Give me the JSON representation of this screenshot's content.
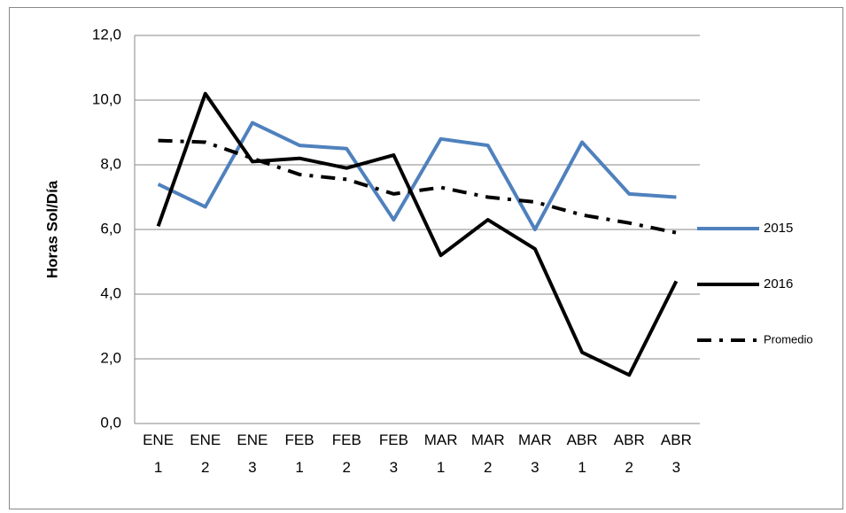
{
  "chart_data": {
    "type": "line",
    "y_label": "Horas Sol/Día",
    "categories": [
      [
        "ENE",
        "1"
      ],
      [
        "ENE",
        "2"
      ],
      [
        "ENE",
        "3"
      ],
      [
        "FEB",
        "1"
      ],
      [
        "FEB",
        "2"
      ],
      [
        "FEB",
        "3"
      ],
      [
        "MAR",
        "1"
      ],
      [
        "MAR",
        "2"
      ],
      [
        "MAR",
        "3"
      ],
      [
        "ABR",
        "1"
      ],
      [
        "ABR",
        "2"
      ],
      [
        "ABR",
        "3"
      ]
    ],
    "series": [
      {
        "name": "2015",
        "color": "#4f81bd",
        "style": "solid",
        "values": [
          7.4,
          6.7,
          9.3,
          8.6,
          8.5,
          6.3,
          8.8,
          8.6,
          6.0,
          8.7,
          7.1,
          7.0
        ]
      },
      {
        "name": "2016",
        "color": "#000000",
        "style": "solid",
        "values": [
          6.1,
          10.2,
          8.1,
          8.2,
          7.9,
          8.3,
          5.2,
          6.3,
          5.4,
          2.2,
          1.5,
          4.4
        ]
      },
      {
        "name": "Promedio",
        "color": "#000000",
        "style": "dashdot",
        "values": [
          8.75,
          8.7,
          8.2,
          7.7,
          7.55,
          7.1,
          7.3,
          7.0,
          6.85,
          6.45,
          6.2,
          5.9
        ]
      }
    ],
    "ylim": [
      0,
      12
    ],
    "yticks": [
      {
        "value": 0,
        "label": "0,0"
      },
      {
        "value": 2,
        "label": "2,0"
      },
      {
        "value": 4,
        "label": "4,0"
      },
      {
        "value": 6,
        "label": "6,0"
      },
      {
        "value": 8,
        "label": "8,0"
      },
      {
        "value": 10,
        "label": "10,0"
      },
      {
        "value": 12,
        "label": "12,0"
      }
    ],
    "grid": true,
    "legend": "right"
  }
}
